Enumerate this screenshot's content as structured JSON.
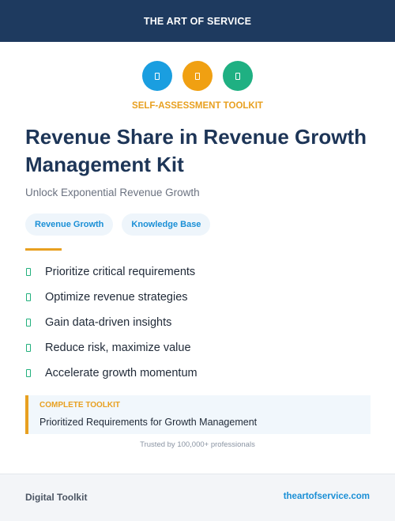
{
  "header": {
    "brand": "THE ART OF SERVICE"
  },
  "icons": [
    {
      "name": "doc-icon",
      "color": "#1a9ee0"
    },
    {
      "name": "doc-icon",
      "color": "#f0a012"
    },
    {
      "name": "doc-icon",
      "color": "#1fb082"
    }
  ],
  "hero": {
    "eyebrow": "SELF-ASSESSMENT TOOLKIT",
    "title": "Revenue Share in Revenue Growth Management Kit",
    "subtitle": "Unlock Exponential Revenue Growth"
  },
  "tags": [
    "Revenue Growth",
    "Knowledge Base"
  ],
  "features": [
    "Prioritize critical requirements",
    "Optimize revenue strategies",
    "Gain data-driven insights",
    "Reduce risk, maximize value",
    "Accelerate growth momentum"
  ],
  "callout": {
    "label": "COMPLETE TOOLKIT",
    "text": "Prioritized Requirements for Growth Management"
  },
  "trusted": "Trusted by 100,000+ professionals",
  "footer": {
    "left": "Digital Toolkit",
    "right": "theartofservice.com"
  },
  "colors": {
    "navy": "#1e3a5f",
    "accent_orange": "#e8a020",
    "accent_blue": "#1a8fd6",
    "accent_green": "#22b07d"
  }
}
